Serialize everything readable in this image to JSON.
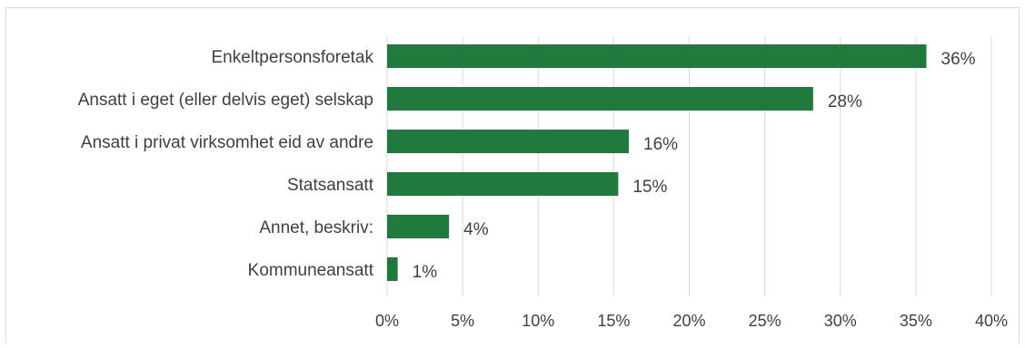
{
  "chart_data": {
    "type": "bar",
    "orientation": "horizontal",
    "title": "",
    "xlabel": "",
    "ylabel": "",
    "categories": [
      "Enkeltpersonsforetak",
      "Ansatt i eget (eller delvis eget) selskap",
      "Ansatt i privat virksomhet eid av andre",
      "Statsansatt",
      "Annet, beskriv:",
      "Kommuneansatt"
    ],
    "values": [
      36,
      28,
      16,
      15,
      4,
      1
    ],
    "data_labels": [
      "36%",
      "28%",
      "16%",
      "15%",
      "4%",
      "1%"
    ],
    "value_fractions": [
      0.357,
      0.282,
      0.16,
      0.153,
      0.041,
      0.007
    ],
    "xlim": [
      0,
      40
    ],
    "x_ticks": [
      0,
      5,
      10,
      15,
      20,
      25,
      30,
      35,
      40
    ],
    "x_tick_labels": [
      "0%",
      "5%",
      "10%",
      "15%",
      "20%",
      "25%",
      "30%",
      "35%",
      "40%"
    ],
    "grid": "vertical",
    "legend": "none",
    "colors": {
      "bar": "#217A3D",
      "grid": "#d9d9d9",
      "text": "#404040"
    }
  }
}
